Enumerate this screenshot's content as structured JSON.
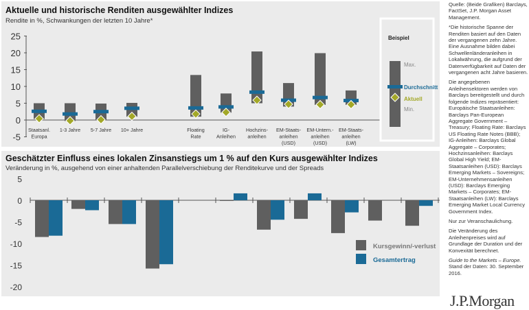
{
  "chart_data": [
    {
      "type": "range-bar",
      "title": "Aktuelle und historische Renditen ausgewählter Indizes",
      "subtitle": "Rendite in %, Schwankungen der letzten 10 Jahre*",
      "ylim": [
        -5,
        25
      ],
      "yticks": [
        25,
        20,
        15,
        10,
        5,
        0,
        -5
      ],
      "categories": [
        "Staatsanl. Europa",
        "1-3 Jahre",
        "5-7 Jahre",
        "10+ Jahre",
        "",
        "Floating Rate",
        "IG-Anleihen",
        "Hochzins-anleihen",
        "EM-Staats-anleihen (USD)",
        "EM-Untern.-anleihen (USD)",
        "EM-Staats-anleihen (LW)"
      ],
      "min": [
        0.3,
        -0.3,
        0,
        1,
        null,
        1,
        2.2,
        5,
        4,
        4.5,
        4.5
      ],
      "max": [
        5,
        5,
        4.9,
        5.1,
        null,
        13.4,
        7.9,
        20.4,
        11,
        19.9,
        8.8
      ],
      "average": [
        2.6,
        1.8,
        2.5,
        3.5,
        null,
        3.6,
        3.9,
        8.3,
        5.9,
        6.7,
        5.8
      ],
      "current": [
        0.4,
        -0.2,
        0.1,
        1.1,
        null,
        1.8,
        2.3,
        5.9,
        4.7,
        4.6,
        4.6
      ],
      "legend": {
        "title": "Beispiel",
        "max": "Max.",
        "average": "Durchschnitt",
        "current": "Aktuell",
        "min": "Min.",
        "placement": "right"
      },
      "colors": {
        "range": "#5f5f5f",
        "average": "#1a6a96",
        "current": "#a3a828"
      }
    },
    {
      "type": "bar",
      "title": "Geschätzter Einfluss eines lokalen Zinsanstiegs um 1 % auf den Kurs ausgewählter Indizes",
      "subtitle": "Veränderung in %, ausgehend von einer anhaltenden Parallelverschiebung der Renditekurve und der Spreads",
      "ylim": [
        -20,
        5
      ],
      "yticks": [
        5,
        0,
        -5,
        -10,
        -15,
        -20
      ],
      "categories": [
        "Staatsanl. Europa",
        "1-3 Jahre",
        "5-7 Jahre",
        "10+ Jahre",
        "",
        "Floating Rate",
        "IG-Anleihen",
        "Hochzins-anleihen",
        "EM-Staats-anleihen (USD)",
        "EM-Untern.-anleihen (USD)",
        "EM-Staats-anleihen (LW)"
      ],
      "series": [
        {
          "name": "Kursgewinn/-verlust",
          "color": "#5f5f5f",
          "values": [
            -8.5,
            -2,
            -5.5,
            -15.8,
            null,
            -0.1,
            -6.8,
            -4.3,
            -7.6,
            -4.7,
            -5.9
          ]
        },
        {
          "name": "Gesamtertrag",
          "color": "#1a6a96",
          "values": [
            -8.2,
            -2.3,
            -5.5,
            -14.8,
            null,
            1.6,
            -4.5,
            1.6,
            -2.8,
            null,
            -1.3
          ]
        }
      ],
      "legend": "right"
    }
  ],
  "side": {
    "paragraphs": [
      "Quelle: (Beide Grafiken) Barclays, FactSet, J.P. Morgan Asset Management.",
      "*Die historische Spanne der Renditen basiert auf den Daten der vergangenen zehn Jahre. Eine Ausnahme bilden dabei Schwellenländeranleihen in Lokalwährung, die aufgrund der Datenverfügbarkeit auf Daten der vergangenen acht Jahre basieren.",
      "Die angegebenen Anleihensektoren werden von Barclays bereitgestellt und durch folgende Indizes repräsentiert: Europäische Staatsanleihen: Barclays Pan-European Aggregate Government – Treasury; Floating Rate: Barclays US Floating Rate Notes (BBB); IG-Anleihen: Barclays Global Aggregate – Corporates; Hochzinsanleihen: Barclays Global High Yield; EM-Staatsanleihen (USD): Barclays Emerging Markets – Sovereigns; EM-Unternehmensanleihen (USD): Barclays Emerging Markets – Corporates; EM-Staatsanleihen (LW): Barclays Emerging Market Local Currency Government Index.",
      "Nur zur Veranschaulichung.",
      "Die Veränderung des Anleihenpreises wird auf Grundlage der Duration und der Konvexität berechnet."
    ],
    "guide": "Guide to the Markets – Europe.",
    "date": "Stand der Daten: 30. September 2016."
  },
  "logo": "J.P.Morgan"
}
